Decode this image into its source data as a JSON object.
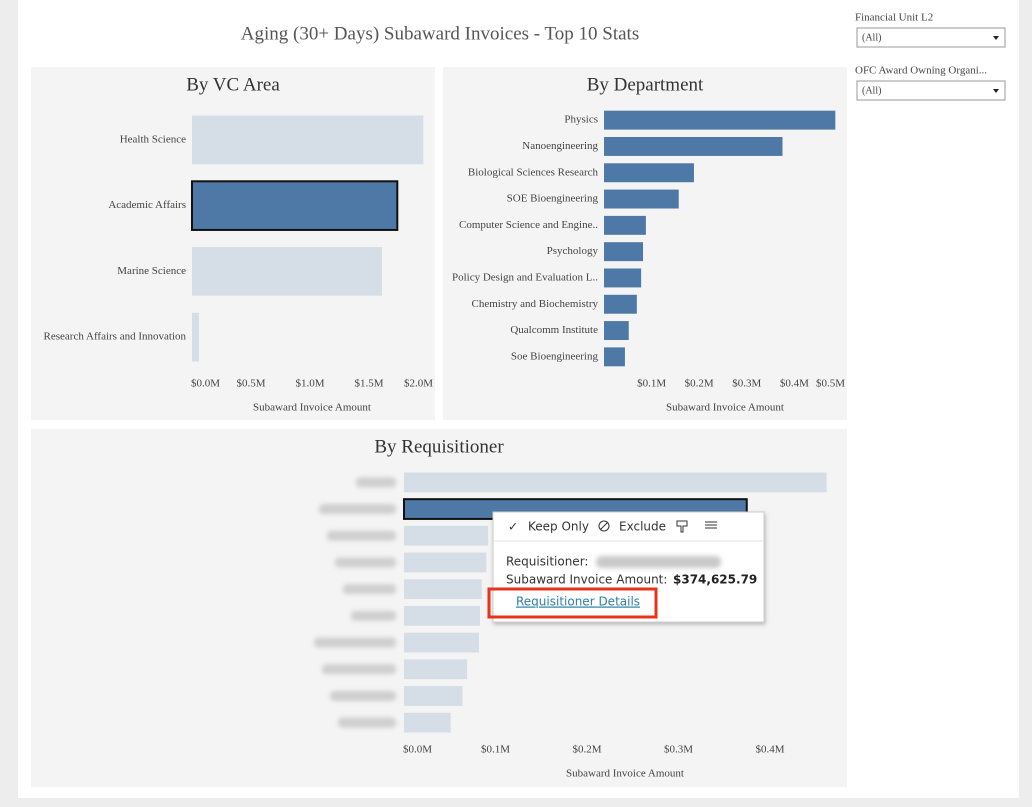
{
  "title": "Aging (30+ Days) Subaward Invoices - Top 10 Stats",
  "chart_data": [
    {
      "type": "hbar",
      "title": "By VC Area",
      "x_label": "Subaward Invoice Amount",
      "categories": [
        "Health Science",
        "Academic Affairs",
        "Marine Science",
        "Research Affairs and Innovation"
      ],
      "values": [
        1960000,
        1740000,
        1610000,
        60000
      ],
      "color": "#d5dde6",
      "highlight_color": "#4e79a7",
      "selected": 1,
      "xlim": [
        0,
        2000000
      ],
      "xticks": [
        {
          "value": 0,
          "label": "$0.0M"
        },
        {
          "value": 500000,
          "label": "$0.5M"
        },
        {
          "value": 1000000,
          "label": "$1.0M"
        },
        {
          "value": 1500000,
          "label": "$1.5M"
        },
        {
          "value": 2000000,
          "label": "$2.0M"
        }
      ]
    },
    {
      "type": "hbar",
      "title": "By Department",
      "x_label": "Subaward Invoice Amount",
      "categories": [
        "Physics",
        "Nanoengineering",
        "Biological Sciences Research",
        "SOE Bioengineering",
        "Computer Science and Engine..",
        "Psychology",
        "Policy Design and Evaluation L..",
        "Chemistry and Biochemistry",
        "Qualcomm Institute",
        "Soe Bioengineering"
      ],
      "values": [
        486000,
        375000,
        189000,
        157000,
        88000,
        82000,
        78000,
        69000,
        52000,
        44000
      ],
      "color": "#4e79a7",
      "xlim": [
        0,
        500000
      ],
      "xticks": [
        {
          "value": 100000,
          "label": "$0.1M"
        },
        {
          "value": 200000,
          "label": "$0.2M"
        },
        {
          "value": 300000,
          "label": "$0.3M"
        },
        {
          "value": 400000,
          "label": "$0.4M"
        },
        {
          "value": 500000,
          "label": "$0.5M"
        }
      ]
    },
    {
      "type": "hbar",
      "title": "By Requisitioner",
      "x_label": "Subaward Invoice Amount",
      "categories": [
        null,
        null,
        null,
        null,
        null,
        null,
        null,
        null,
        null,
        null
      ],
      "values": [
        462000,
        374625.79,
        92000,
        90000,
        85000,
        83000,
        82000,
        69000,
        64000,
        51000
      ],
      "color": "#d5dde6",
      "highlight_color": "#4e79a7",
      "selected": 1,
      "xlim": [
        0,
        470000
      ],
      "xticks": [
        {
          "value": 0,
          "label": "$0.0M"
        },
        {
          "value": 100000,
          "label": "$0.1M"
        },
        {
          "value": 200000,
          "label": "$0.2M"
        },
        {
          "value": 300000,
          "label": "$0.3M"
        },
        {
          "value": 400000,
          "label": "$0.4M"
        }
      ]
    }
  ],
  "filters": [
    {
      "label": "Financial Unit L2",
      "value": "(All)"
    },
    {
      "label": "OFC Award Owning Organi...",
      "value": "(All)"
    }
  ],
  "tooltip": {
    "actions": [
      "Keep Only",
      "Exclude"
    ],
    "field1": "Requisitioner:",
    "field2": "Subaward Invoice Amount:",
    "amount": "$374,625.79",
    "link": "Requisitioner Details"
  }
}
